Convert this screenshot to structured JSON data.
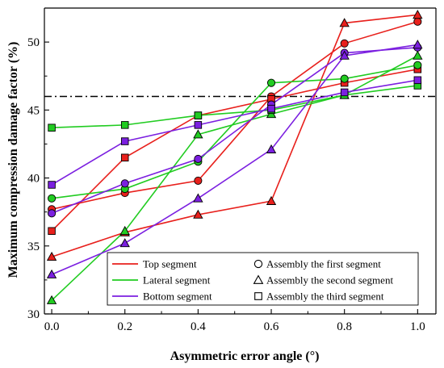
{
  "chart_data": {
    "type": "line",
    "title": "",
    "xlabel": "Asymmetric error angle (°)",
    "ylabel": "Maximum compression damage factor (%)",
    "xlim": [
      -0.02,
      1.05
    ],
    "ylim": [
      30,
      52.5
    ],
    "xticks": [
      0.0,
      0.2,
      0.4,
      0.6,
      0.8,
      1.0
    ],
    "xtick_labels": [
      "0.0",
      "0.2",
      "0.4",
      "0.6",
      "0.8",
      "1.0"
    ],
    "yticks": [
      30,
      35,
      40,
      45,
      50
    ],
    "ytick_labels": [
      "30",
      "35",
      "40",
      "45",
      "50"
    ],
    "grid": false,
    "reference_line": {
      "y": 46,
      "style": "dash-dot",
      "color": "#000000"
    },
    "x": [
      0.0,
      0.2,
      0.4,
      0.6,
      0.8,
      1.0
    ],
    "segment_colors": {
      "top": "#e8201c",
      "lateral": "#21cc21",
      "bottom": "#7b1fe0"
    },
    "series": [
      {
        "segment": "top",
        "marker": "circle",
        "color": "#e8201c",
        "values": [
          37.7,
          38.9,
          39.8,
          46.0,
          49.9,
          51.5
        ]
      },
      {
        "segment": "top",
        "marker": "triangle",
        "color": "#e8201c",
        "values": [
          34.2,
          36.0,
          37.3,
          38.3,
          51.4,
          52.0
        ]
      },
      {
        "segment": "top",
        "marker": "square",
        "color": "#e8201c",
        "values": [
          36.1,
          41.5,
          44.6,
          45.8,
          47.0,
          48.0
        ]
      },
      {
        "segment": "lateral",
        "marker": "circle",
        "color": "#21cc21",
        "values": [
          38.5,
          39.2,
          41.2,
          47.0,
          47.3,
          48.3
        ]
      },
      {
        "segment": "lateral",
        "marker": "triangle",
        "color": "#21cc21",
        "values": [
          31.0,
          36.1,
          43.2,
          44.7,
          46.1,
          49.0
        ]
      },
      {
        "segment": "lateral",
        "marker": "square",
        "color": "#21cc21",
        "values": [
          43.7,
          43.9,
          44.6,
          45.0,
          46.1,
          46.8
        ]
      },
      {
        "segment": "bottom",
        "marker": "circle",
        "color": "#7b1fe0",
        "values": [
          37.4,
          39.6,
          41.4,
          45.4,
          49.2,
          49.6
        ]
      },
      {
        "segment": "bottom",
        "marker": "triangle",
        "color": "#7b1fe0",
        "values": [
          32.9,
          35.2,
          38.5,
          42.1,
          49.0,
          49.8
        ]
      },
      {
        "segment": "bottom",
        "marker": "square",
        "color": "#7b1fe0",
        "values": [
          39.5,
          42.7,
          43.9,
          45.1,
          46.3,
          47.2
        ]
      }
    ],
    "legend": {
      "placement": "bottom-right",
      "lines": [
        {
          "label": "Top segment",
          "color": "#e8201c"
        },
        {
          "label": "Lateral segment",
          "color": "#21cc21"
        },
        {
          "label": "Bottom segment",
          "color": "#7b1fe0"
        }
      ],
      "markers": [
        {
          "label": "Assembly the first segment",
          "marker": "circle"
        },
        {
          "label": "Assembly the second segment",
          "marker": "triangle"
        },
        {
          "label": "Assembly the third segment",
          "marker": "square"
        }
      ]
    }
  }
}
